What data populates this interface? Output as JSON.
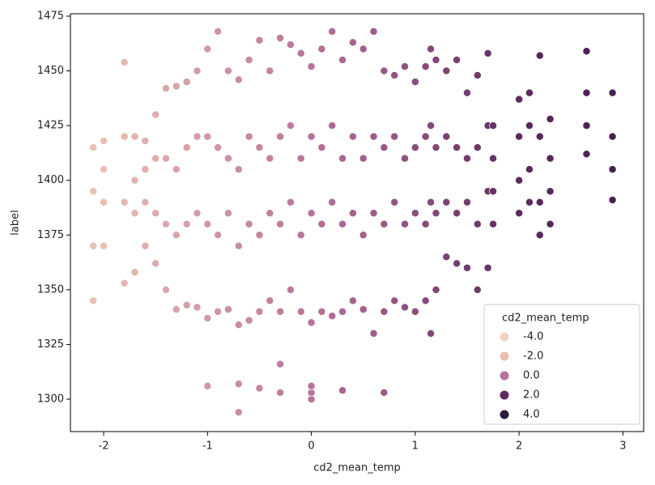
{
  "chart_data": {
    "type": "scatter",
    "x_label": "cd2_mean_temp",
    "y_label": "label",
    "x": [
      -2.1,
      -2.1,
      -2.1,
      -2.1,
      -2.0,
      -2.0,
      -2.0,
      -2.0,
      -1.8,
      -1.8,
      -1.8,
      -1.8,
      -1.7,
      -1.7,
      -1.7,
      -1.7,
      -1.6,
      -1.6,
      -1.6,
      -1.6,
      -1.5,
      -1.5,
      -1.5,
      -1.5,
      -1.4,
      -1.4,
      -1.4,
      -1.4,
      -1.3,
      -1.3,
      -1.3,
      -1.3,
      -1.2,
      -1.2,
      -1.2,
      -1.2,
      -1.1,
      -1.1,
      -1.1,
      -1.1,
      -1.0,
      -1.0,
      -1.0,
      -1.0,
      -0.9,
      -0.9,
      -0.9,
      -0.9,
      -0.8,
      -0.8,
      -0.8,
      -0.8,
      -0.7,
      -0.7,
      -0.7,
      -0.7,
      -0.6,
      -0.6,
      -0.6,
      -0.6,
      -0.5,
      -0.5,
      -0.5,
      -0.5,
      -0.4,
      -0.4,
      -0.4,
      -0.4,
      -0.3,
      -0.3,
      -0.3,
      -0.3,
      -0.2,
      -0.2,
      -0.2,
      -0.2,
      -0.1,
      -0.1,
      -0.1,
      -0.1,
      0.0,
      0.0,
      0.0,
      0.0,
      0.1,
      0.1,
      0.1,
      0.1,
      0.2,
      0.2,
      0.2,
      0.2,
      0.3,
      0.3,
      0.3,
      0.3,
      0.4,
      0.4,
      0.4,
      0.4,
      0.5,
      0.5,
      0.5,
      0.5,
      0.6,
      0.6,
      0.6,
      0.6,
      0.7,
      0.7,
      0.7,
      0.7,
      0.8,
      0.8,
      0.8,
      0.8,
      0.9,
      0.9,
      0.9,
      0.9,
      1.0,
      1.0,
      1.0,
      1.0,
      1.1,
      1.1,
      1.1,
      1.1,
      1.15,
      1.15,
      1.15,
      1.15,
      1.2,
      1.2,
      1.2,
      1.2,
      1.3,
      1.3,
      1.3,
      1.3,
      1.4,
      1.4,
      1.4,
      1.4,
      1.5,
      1.5,
      1.5,
      1.5,
      1.6,
      1.6,
      1.6,
      1.6,
      1.7,
      1.7,
      1.7,
      1.7,
      1.75,
      1.75,
      1.75,
      1.75,
      2.0,
      2.0,
      2.0,
      2.0,
      2.1,
      2.1,
      2.1,
      2.1,
      2.2,
      2.2,
      2.2,
      2.2,
      2.3,
      2.3,
      2.3,
      2.3,
      2.65,
      2.65,
      2.65,
      2.65,
      2.9,
      2.9,
      2.9,
      2.9,
      -1.0,
      -0.7,
      -0.7,
      -0.5,
      -0.3,
      -0.3,
      0.0,
      0.0,
      0.0,
      0.3,
      0.7
    ],
    "values": [
      1345,
      1370,
      1395,
      1415,
      1370,
      1390,
      1405,
      1418,
      1353,
      1390,
      1420,
      1454,
      1358,
      1385,
      1400,
      1420,
      1370,
      1390,
      1405,
      1418,
      1362,
      1385,
      1410,
      1430,
      1350,
      1380,
      1410,
      1442,
      1341,
      1375,
      1405,
      1443,
      1343,
      1380,
      1415,
      1445,
      1342,
      1385,
      1420,
      1450,
      1337,
      1380,
      1420,
      1460,
      1340,
      1375,
      1415,
      1468,
      1341,
      1385,
      1410,
      1450,
      1334,
      1370,
      1405,
      1446,
      1336,
      1380,
      1420,
      1455,
      1340,
      1375,
      1415,
      1464,
      1345,
      1385,
      1410,
      1450,
      1340,
      1380,
      1420,
      1465,
      1350,
      1390,
      1425,
      1462,
      1340,
      1375,
      1410,
      1458,
      1335,
      1385,
      1420,
      1452,
      1340,
      1380,
      1415,
      1460,
      1338,
      1390,
      1425,
      1468,
      1340,
      1380,
      1410,
      1455,
      1345,
      1385,
      1420,
      1463,
      1341,
      1375,
      1410,
      1460,
      1330,
      1385,
      1420,
      1468,
      1340,
      1380,
      1415,
      1450,
      1345,
      1390,
      1420,
      1448,
      1342,
      1380,
      1410,
      1452,
      1340,
      1385,
      1415,
      1445,
      1345,
      1380,
      1420,
      1452,
      1330,
      1390,
      1425,
      1460,
      1350,
      1385,
      1415,
      1455,
      1365,
      1390,
      1420,
      1450,
      1362,
      1385,
      1415,
      1455,
      1360,
      1390,
      1410,
      1440,
      1350,
      1380,
      1415,
      1448,
      1360,
      1395,
      1425,
      1458,
      1380,
      1395,
      1410,
      1425,
      1385,
      1400,
      1420,
      1437,
      1390,
      1405,
      1425,
      1440,
      1375,
      1390,
      1420,
      1457,
      1380,
      1395,
      1410,
      1428,
      1412,
      1425,
      1440,
      1459,
      1391,
      1405,
      1420,
      1440,
      1306,
      1307,
      1294,
      1305,
      1303,
      1316,
      1300,
      1303,
      1306,
      1304,
      1303
    ],
    "xlim": [
      -2.32,
      3.2
    ],
    "xticks": [
      -2,
      -1,
      0,
      1,
      2,
      3
    ],
    "ylim": [
      1285.2,
      1476.1
    ],
    "yticks": [
      1300,
      1325,
      1350,
      1375,
      1400,
      1425,
      1450,
      1475
    ],
    "legend": {
      "title": "cd2_mean_temp",
      "position": "lower right",
      "levels": [
        {
          "value": -4,
          "label": "-4.0",
          "color": "#f2d3ca"
        },
        {
          "value": -2,
          "label": "-2.0",
          "color": "#e9bfb4"
        },
        {
          "value": 0,
          "label": "0.0",
          "color": "#b7739a"
        },
        {
          "value": 2,
          "label": "2.0",
          "color": "#5d2a5e"
        },
        {
          "value": 4,
          "label": "4.0",
          "color": "#2b1a3d"
        }
      ]
    }
  }
}
